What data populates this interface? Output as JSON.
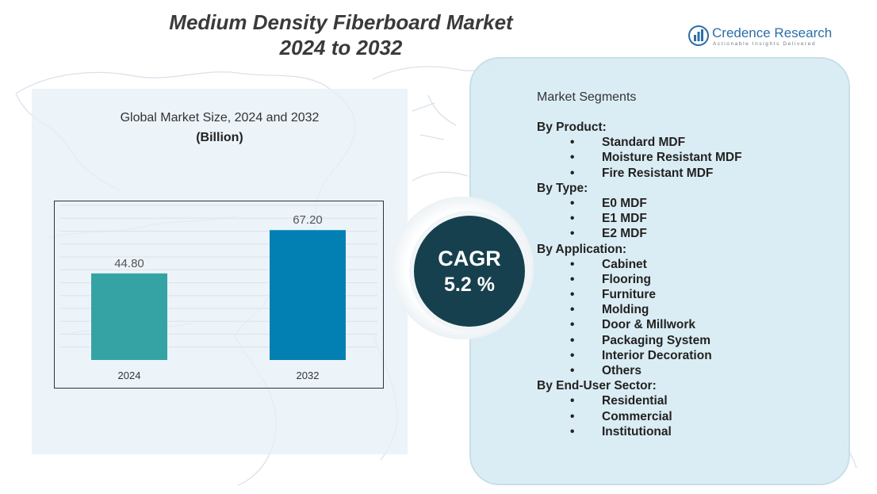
{
  "title_line1": "Medium Density Fiberboard Market",
  "title_line2": "2024 to 2032",
  "logo": {
    "name": "Credence Research",
    "tagline": "Actionable Insights Delivered",
    "icon": "bar-chart-globe-icon",
    "color": "#2b6ea8"
  },
  "chart_heading": "Global Market Size, 2024 and 2032",
  "chart_unit": "(Billion)",
  "chart_data": {
    "type": "bar",
    "title": "Global Market Size, 2024 and 2032",
    "ylabel": "(Billion)",
    "xlabel": "",
    "categories": [
      "2024",
      "2032"
    ],
    "values": [
      44.8,
      67.2
    ],
    "value_labels": [
      "44.80",
      "67.20"
    ],
    "colors": [
      "#35a3a4",
      "#0380b3"
    ],
    "ylim": [
      0,
      80
    ],
    "grid": true
  },
  "cagr": {
    "label": "CAGR",
    "value": "5.2 %"
  },
  "segments": {
    "title": "Market Segments",
    "groups": [
      {
        "name": "By Product:",
        "items": [
          "Standard MDF",
          "Moisture Resistant MDF",
          "Fire Resistant MDF"
        ]
      },
      {
        "name": "By Type:",
        "items": [
          "E0 MDF",
          "E1 MDF",
          "E2 MDF"
        ]
      },
      {
        "name": "By Application:",
        "items": [
          "Cabinet",
          "Flooring",
          "Furniture",
          "Molding",
          "Door & Millwork",
          "Packaging System",
          "Interior Decoration",
          "Others"
        ]
      },
      {
        "name": "By End-User Sector:",
        "items": [
          "Residential",
          "Commercial",
          "Institutional"
        ]
      }
    ]
  }
}
